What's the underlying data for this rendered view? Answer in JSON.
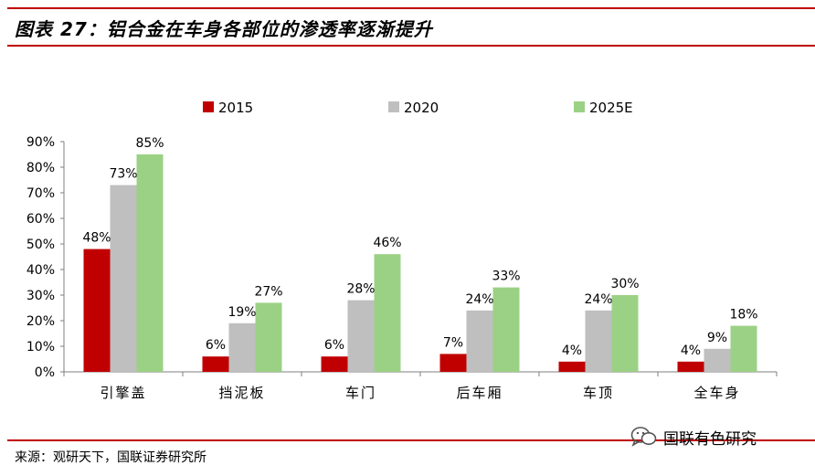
{
  "header": {
    "title": "图表 27：铝合金在车身各部位的渗透率逐渐提升"
  },
  "footer": {
    "source": "来源：观研天下，国联证券研究所",
    "watermark": "国联有色研究"
  },
  "colors": {
    "2015": "#c00000",
    "2020": "#bfbfbf",
    "2025E": "#9bd184",
    "rule": "#c00000"
  },
  "chart_data": {
    "type": "bar",
    "categories": [
      "引擎盖",
      "挡泥板",
      "车门",
      "后车厢",
      "车顶",
      "全车身"
    ],
    "series": [
      {
        "name": "2015",
        "values": [
          48,
          6,
          6,
          7,
          4,
          4
        ]
      },
      {
        "name": "2020",
        "values": [
          73,
          19,
          28,
          24,
          24,
          9
        ]
      },
      {
        "name": "2025E",
        "values": [
          85,
          27,
          46,
          33,
          30,
          18
        ]
      }
    ],
    "ylim": [
      0,
      90
    ],
    "yticks": [
      "0%",
      "10%",
      "20%",
      "30%",
      "40%",
      "50%",
      "60%",
      "70%",
      "80%",
      "90%"
    ],
    "unit": "%",
    "legend_position": "top"
  }
}
